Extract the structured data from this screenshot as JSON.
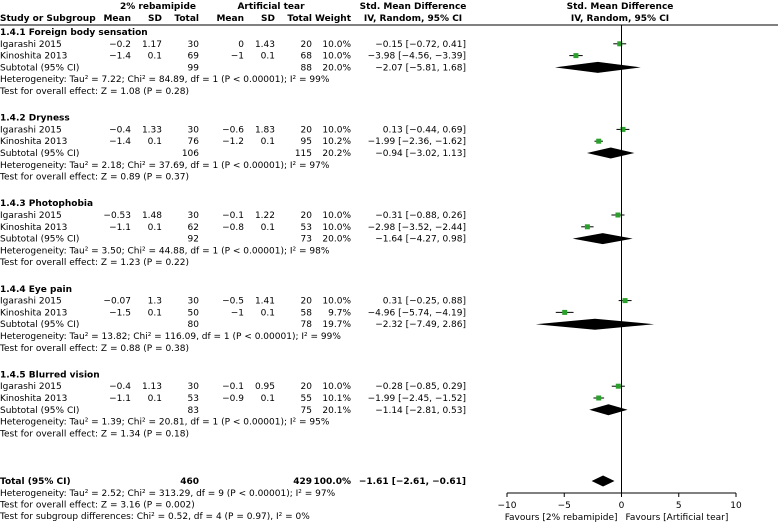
{
  "headers": {
    "group1": "2% rebamipide",
    "group2": "Artificial tear",
    "smd_title": "Std. Mean Difference",
    "smd_sub": "IV, Random, 95% CI",
    "plot_title": "Std. Mean Difference",
    "plot_sub": "IV, Random, 95% CI",
    "columns": [
      "Study or Subgroup",
      "Mean",
      "SD",
      "Total",
      "Mean",
      "SD",
      "Total",
      "Weight"
    ]
  },
  "chart_data": {
    "type": "forest",
    "xlim": [
      -10,
      10
    ],
    "xticks": [
      -10,
      -5,
      0,
      5,
      10
    ],
    "tick_labels": [
      "−10",
      "−5",
      "0",
      "5",
      "10"
    ],
    "favours_left": "Favours [2% rebamipide]",
    "favours_right": "Favours [Artificial tear]",
    "colors": {
      "study_box": "#2ca02c",
      "line": "#000000"
    },
    "subgroups": [
      {
        "title": "1.4.1 Foreign body sensation",
        "studies": [
          {
            "name": "Igarashi 2015",
            "mean1": "−0.2",
            "sd1": "1.17",
            "n1": "30",
            "mean2": "0",
            "sd2": "1.43",
            "n2": "20",
            "weight": "10.0%",
            "ci_text": "−0.15 [−0.72, 0.41]",
            "est": -0.15,
            "lo": -0.72,
            "hi": 0.41
          },
          {
            "name": "Kinoshita 2013",
            "mean1": "−1.4",
            "sd1": "0.1",
            "n1": "69",
            "mean2": "−1",
            "sd2": "0.1",
            "n2": "68",
            "weight": "10.0%",
            "ci_text": "−3.98 [−4.56, −3.39]",
            "est": -3.98,
            "lo": -4.56,
            "hi": -3.39
          }
        ],
        "subtotal": {
          "label": "Subtotal (95% CI)",
          "n1": "99",
          "n2": "88",
          "weight": "20.0%",
          "ci_text": "−2.07 [−5.81, 1.68]",
          "est": -2.07,
          "lo": -5.81,
          "hi": 1.68
        },
        "heterogeneity": "Heterogeneity: Tau² = 7.22; Chi² = 84.89, df = 1 (P < 0.00001); I² = 99%",
        "overall": "Test for overall effect: Z = 1.08 (P = 0.28)"
      },
      {
        "title": "1.4.2 Dryness",
        "studies": [
          {
            "name": "Igarashi 2015",
            "mean1": "−0.4",
            "sd1": "1.33",
            "n1": "30",
            "mean2": "−0.6",
            "sd2": "1.83",
            "n2": "20",
            "weight": "10.0%",
            "ci_text": "0.13 [−0.44, 0.69]",
            "est": 0.13,
            "lo": -0.44,
            "hi": 0.69
          },
          {
            "name": "Kinoshita 2013",
            "mean1": "−1.4",
            "sd1": "0.1",
            "n1": "76",
            "mean2": "−1.2",
            "sd2": "0.1",
            "n2": "95",
            "weight": "10.2%",
            "ci_text": "−1.99 [−2.36, −1.62]",
            "est": -1.99,
            "lo": -2.36,
            "hi": -1.62
          }
        ],
        "subtotal": {
          "label": "Subtotal (95% CI)",
          "n1": "106",
          "n2": "115",
          "weight": "20.2%",
          "ci_text": "−0.94 [−3.02, 1.13]",
          "est": -0.94,
          "lo": -3.02,
          "hi": 1.13
        },
        "heterogeneity": "Heterogeneity: Tau² = 2.18; Chi² = 37.69, df = 1 (P < 0.00001); I² = 97%",
        "overall": "Test for overall effect: Z = 0.89 (P = 0.37)"
      },
      {
        "title": "1.4.3 Photophobia",
        "studies": [
          {
            "name": "Igarashi 2015",
            "mean1": "−0.53",
            "sd1": "1.48",
            "n1": "30",
            "mean2": "−0.1",
            "sd2": "1.22",
            "n2": "20",
            "weight": "10.0%",
            "ci_text": "−0.31 [−0.88, 0.26]",
            "est": -0.31,
            "lo": -0.88,
            "hi": 0.26
          },
          {
            "name": "Kinoshita 2013",
            "mean1": "−1.1",
            "sd1": "0.1",
            "n1": "62",
            "mean2": "−0.8",
            "sd2": "0.1",
            "n2": "53",
            "weight": "10.0%",
            "ci_text": "−2.98 [−3.52, −2.44]",
            "est": -2.98,
            "lo": -3.52,
            "hi": -2.44
          }
        ],
        "subtotal": {
          "label": "Subtotal (95% CI)",
          "n1": "92",
          "n2": "73",
          "weight": "20.0%",
          "ci_text": "−1.64 [−4.27, 0.98]",
          "est": -1.64,
          "lo": -4.27,
          "hi": 0.98
        },
        "heterogeneity": "Heterogeneity: Tau² = 3.50; Chi² = 44.88, df = 1 (P < 0.00001); I² = 98%",
        "overall": "Test for overall effect: Z = 1.23 (P = 0.22)"
      },
      {
        "title": "1.4.4 Eye pain",
        "studies": [
          {
            "name": "Igarashi 2015",
            "mean1": "−0.07",
            "sd1": "1.3",
            "n1": "30",
            "mean2": "−0.5",
            "sd2": "1.41",
            "n2": "20",
            "weight": "10.0%",
            "ci_text": "0.31 [−0.25, 0.88]",
            "est": 0.31,
            "lo": -0.25,
            "hi": 0.88
          },
          {
            "name": "Kinoshita 2013",
            "mean1": "−1.5",
            "sd1": "0.1",
            "n1": "50",
            "mean2": "−1",
            "sd2": "0.1",
            "n2": "58",
            "weight": "9.7%",
            "ci_text": "−4.96 [−5.74, −4.19]",
            "est": -4.96,
            "lo": -5.74,
            "hi": -4.19
          }
        ],
        "subtotal": {
          "label": "Subtotal (95% CI)",
          "n1": "80",
          "n2": "78",
          "weight": "19.7%",
          "ci_text": "−2.32 [−7.49, 2.86]",
          "est": -2.32,
          "lo": -7.49,
          "hi": 2.86
        },
        "heterogeneity": "Heterogeneity: Tau² = 13.82; Chi² = 116.09, df = 1 (P < 0.00001); I² = 99%",
        "overall": "Test for overall effect: Z = 0.88 (P = 0.38)"
      },
      {
        "title": "1.4.5 Blurred vision",
        "studies": [
          {
            "name": "Igarashi 2015",
            "mean1": "−0.4",
            "sd1": "1.13",
            "n1": "30",
            "mean2": "−0.1",
            "sd2": "0.95",
            "n2": "20",
            "weight": "10.0%",
            "ci_text": "−0.28 [−0.85, 0.29]",
            "est": -0.28,
            "lo": -0.85,
            "hi": 0.29
          },
          {
            "name": "Kinoshita 2013",
            "mean1": "−1.1",
            "sd1": "0.1",
            "n1": "53",
            "mean2": "−0.9",
            "sd2": "0.1",
            "n2": "55",
            "weight": "10.1%",
            "ci_text": "−1.99 [−2.45, −1.52]",
            "est": -1.99,
            "lo": -2.45,
            "hi": -1.52
          }
        ],
        "subtotal": {
          "label": "Subtotal (95% CI)",
          "n1": "83",
          "n2": "75",
          "weight": "20.1%",
          "ci_text": "−1.14 [−2.81, 0.53]",
          "est": -1.14,
          "lo": -2.81,
          "hi": 0.53
        },
        "heterogeneity": "Heterogeneity: Tau² = 1.39; Chi² = 20.81, df = 1 (P < 0.00001); I² = 95%",
        "overall": "Test for overall effect: Z = 1.34 (P = 0.18)"
      }
    ],
    "total": {
      "label": "Total (95% CI)",
      "n1": "460",
      "n2": "429",
      "weight": "100.0%",
      "ci_text": "−1.61 [−2.61, −0.61]",
      "est": -1.61,
      "lo": -2.61,
      "hi": -0.61
    },
    "footer": [
      "Heterogeneity: Tau² = 2.52; Chi² = 313.29, df = 9 (P < 0.00001); I² = 97%",
      "Test for overall effect: Z = 3.16 (P = 0.002)",
      "Test for subgroup differences: Chi² = 0.52, df = 4 (P = 0.97), I² = 0%"
    ]
  }
}
